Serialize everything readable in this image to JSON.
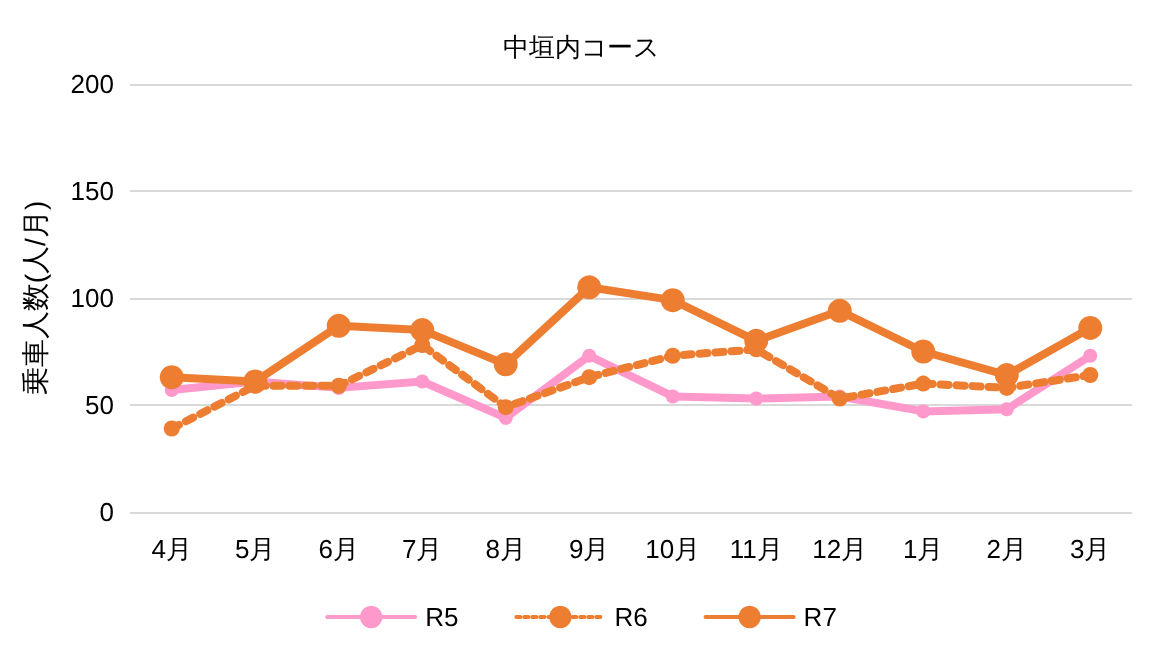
{
  "chart_data": {
    "type": "line",
    "title": "中垣内コース",
    "ylabel": "乗車人数(人/月)",
    "categories": [
      "4月",
      "5月",
      "6月",
      "7月",
      "8月",
      "9月",
      "10月",
      "11月",
      "12月",
      "1月",
      "2月",
      "3月"
    ],
    "series": [
      {
        "name": "R5",
        "color": "#ff99cc",
        "line_style": "solid",
        "values": [
          57,
          61,
          58,
          61,
          44,
          73,
          54,
          53,
          54,
          47,
          48,
          73
        ]
      },
      {
        "name": "R6",
        "color": "#ed7d31",
        "line_style": "dotted",
        "values": [
          39,
          59,
          59,
          78,
          49,
          63,
          73,
          76,
          53,
          60,
          58,
          64
        ]
      },
      {
        "name": "R7",
        "color": "#ed7d31",
        "line_style": "solid",
        "values": [
          63,
          61,
          87,
          85,
          69,
          105,
          99,
          80,
          94,
          75,
          64,
          86
        ]
      }
    ],
    "ylim": [
      0,
      200
    ],
    "yticks": [
      0,
      50,
      100,
      150,
      200
    ],
    "grid": "y",
    "legend": "bottom",
    "marker": "circle"
  }
}
